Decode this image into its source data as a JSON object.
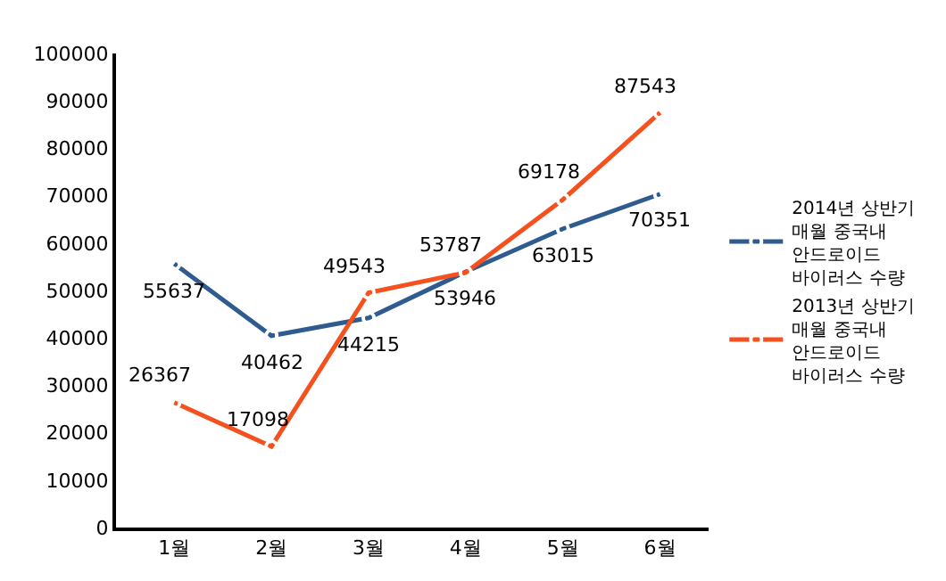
{
  "chart_data": {
    "type": "line",
    "categories": [
      "1월",
      "2월",
      "3월",
      "4월",
      "5월",
      "6월"
    ],
    "series": [
      {
        "name": "2014년 상반기\n매월 중국내\n안드로이드\n바이러스 수량",
        "color": "#2f5b8f",
        "values": [
          55637,
          40462,
          44215,
          53946,
          63015,
          70351
        ]
      },
      {
        "name": "2013년 상반기\n매월 중국내\n안드로이드\n바이러스 수량",
        "color": "#f4511e",
        "values": [
          26367,
          17098,
          49543,
          53787,
          69178,
          87543
        ]
      }
    ],
    "ylim": [
      0,
      100000
    ],
    "yticks": [
      0,
      10000,
      20000,
      30000,
      40000,
      50000,
      60000,
      70000,
      80000,
      90000,
      100000
    ],
    "data_labels": true,
    "legend": "right",
    "marker": "circle",
    "line_style": "solid"
  }
}
